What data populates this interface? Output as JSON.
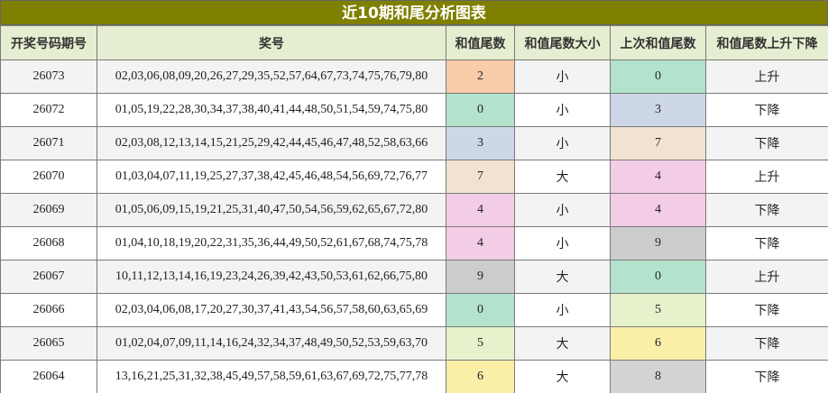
{
  "title": "近10期和尾分析图表",
  "table": {
    "headers": [
      "开奖号码期号",
      "奖号",
      "和值尾数",
      "和值尾数大小",
      "上次和值尾数",
      "和值尾数上升下降"
    ],
    "rows": [
      [
        "26073",
        "02,03,06,08,09,20,26,27,29,35,52,57,64,67,73,74,75,76,79,80",
        "2",
        "小",
        "0",
        "上升"
      ],
      [
        "26072",
        "01,05,19,22,28,30,34,37,38,40,41,44,48,50,51,54,59,74,75,80",
        "0",
        "小",
        "3",
        "下降"
      ],
      [
        "26071",
        "02,03,08,12,13,14,15,21,25,29,42,44,45,46,47,48,52,58,63,66",
        "3",
        "小",
        "7",
        "下降"
      ],
      [
        "26070",
        "01,03,04,07,11,19,25,27,37,38,42,45,46,48,54,56,69,72,76,77",
        "7",
        "大",
        "4",
        "上升"
      ],
      [
        "26069",
        "01,05,06,09,15,19,21,25,31,40,47,50,54,56,59,62,65,67,72,80",
        "4",
        "小",
        "4",
        "下降"
      ],
      [
        "26068",
        "01,04,10,18,19,20,22,31,35,36,44,49,50,52,61,67,68,74,75,78",
        "4",
        "小",
        "9",
        "下降"
      ],
      [
        "26067",
        "10,11,12,13,14,16,19,23,24,26,39,42,43,50,53,61,62,66,75,80",
        "9",
        "大",
        "0",
        "上升"
      ],
      [
        "26066",
        "02,03,04,06,08,17,20,27,30,37,41,43,54,56,57,58,60,63,65,69",
        "0",
        "小",
        "5",
        "下降"
      ],
      [
        "26065",
        "01,02,04,07,09,11,14,16,24,32,34,37,48,49,50,52,53,59,63,70",
        "5",
        "大",
        "6",
        "下降"
      ],
      [
        "26064",
        "13,16,21,25,31,32,38,45,49,57,58,59,61,63,67,69,72,75,77,78",
        "6",
        "大",
        "8",
        "下降"
      ]
    ]
  }
}
